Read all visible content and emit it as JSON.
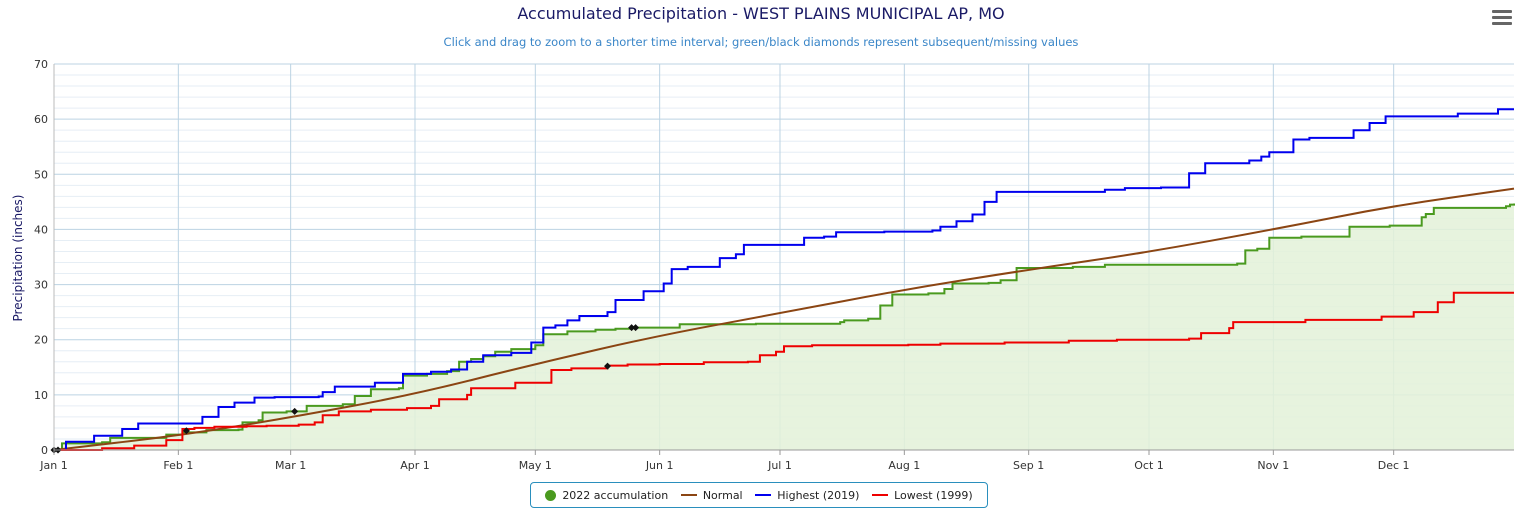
{
  "colors": {
    "accumulation": "#4a9a1f",
    "accumulation_fill": "#e3f1d8",
    "normal": "#8b4513",
    "highest": "#0000ee",
    "lowest": "#ee0000",
    "grid": "#bcd3e3",
    "axis_text": "#333333"
  },
  "menu_icon": "hamburger-menu-icon",
  "chart_data": {
    "type": "line",
    "title": "Accumulated Precipitation - WEST PLAINS MUNICIPAL AP, MO",
    "subtitle": "Click and drag to zoom to a shorter time interval; green/black diamonds represent subsequent/missing values",
    "ylabel": "Precipitation (inches)",
    "xlabel": "",
    "ylim": [
      0,
      70
    ],
    "xlim": [
      0,
      364
    ],
    "yticks": [
      "0",
      "10",
      "20",
      "30",
      "40",
      "50",
      "60",
      "70"
    ],
    "xticks": [
      {
        "label": "Jan 1",
        "day": 0
      },
      {
        "label": "Feb 1",
        "day": 31
      },
      {
        "label": "Mar 1",
        "day": 59
      },
      {
        "label": "Apr 1",
        "day": 90
      },
      {
        "label": "May 1",
        "day": 120
      },
      {
        "label": "Jun 1",
        "day": 151
      },
      {
        "label": "Jul 1",
        "day": 181
      },
      {
        "label": "Aug 1",
        "day": 212
      },
      {
        "label": "Sep 1",
        "day": 243
      },
      {
        "label": "Oct 1",
        "day": 273
      },
      {
        "label": "Nov 1",
        "day": 304
      },
      {
        "label": "Dec 1",
        "day": 334
      }
    ],
    "series": [
      {
        "key": "accumulation",
        "name": "2022 accumulation",
        "style": "step-area",
        "points": [
          [
            0,
            0
          ],
          [
            2,
            1.2
          ],
          [
            12,
            1.4
          ],
          [
            14,
            2.2
          ],
          [
            28,
            2.8
          ],
          [
            32,
            3.2
          ],
          [
            38,
            3.6
          ],
          [
            46,
            3.7
          ],
          [
            47,
            5.0
          ],
          [
            51,
            5.4
          ],
          [
            52,
            6.8
          ],
          [
            58,
            7.0
          ],
          [
            63,
            8.0
          ],
          [
            72,
            8.3
          ],
          [
            75,
            9.8
          ],
          [
            79,
            11.0
          ],
          [
            86,
            11.2
          ],
          [
            87,
            13.5
          ],
          [
            93,
            13.8
          ],
          [
            98,
            14.3
          ],
          [
            101,
            16.0
          ],
          [
            104,
            16.5
          ],
          [
            107,
            17.0
          ],
          [
            110,
            17.8
          ],
          [
            114,
            18.3
          ],
          [
            120,
            19.0
          ],
          [
            122,
            21.0
          ],
          [
            128,
            21.5
          ],
          [
            135,
            21.8
          ],
          [
            140,
            22.0
          ],
          [
            144,
            22.2
          ],
          [
            156,
            22.8
          ],
          [
            175,
            22.9
          ],
          [
            196,
            23.2
          ],
          [
            197,
            23.5
          ],
          [
            203,
            23.8
          ],
          [
            206,
            26.2
          ],
          [
            209,
            28.2
          ],
          [
            218,
            28.4
          ],
          [
            222,
            29.2
          ],
          [
            224,
            30.2
          ],
          [
            233,
            30.3
          ],
          [
            236,
            30.8
          ],
          [
            240,
            33.0
          ],
          [
            254,
            33.2
          ],
          [
            262,
            33.6
          ],
          [
            295,
            33.8
          ],
          [
            297,
            36.2
          ],
          [
            300,
            36.5
          ],
          [
            303,
            38.5
          ],
          [
            311,
            38.7
          ],
          [
            323,
            40.5
          ],
          [
            333,
            40.7
          ],
          [
            341,
            42.2
          ],
          [
            342,
            42.8
          ],
          [
            344,
            43.9
          ],
          [
            362,
            44.2
          ],
          [
            363,
            44.5
          ],
          [
            364,
            44.7
          ]
        ]
      },
      {
        "key": "normal",
        "name": "Normal",
        "style": "smooth",
        "points": [
          [
            0,
            0
          ],
          [
            31,
            2.6
          ],
          [
            59,
            5.9
          ],
          [
            90,
            10.1
          ],
          [
            120,
            15.6
          ],
          [
            151,
            20.8
          ],
          [
            181,
            24.8
          ],
          [
            212,
            29.1
          ],
          [
            243,
            32.7
          ],
          [
            273,
            35.9
          ],
          [
            304,
            40.0
          ],
          [
            334,
            44.3
          ],
          [
            364,
            47.4
          ]
        ]
      },
      {
        "key": "highest",
        "name": "Highest (2019)",
        "style": "step",
        "points": [
          [
            0,
            0
          ],
          [
            3,
            1.5
          ],
          [
            10,
            2.6
          ],
          [
            17,
            3.8
          ],
          [
            21,
            4.8
          ],
          [
            37,
            6.0
          ],
          [
            41,
            7.8
          ],
          [
            45,
            8.6
          ],
          [
            50,
            9.5
          ],
          [
            55,
            9.6
          ],
          [
            66,
            9.7
          ],
          [
            67,
            10.5
          ],
          [
            70,
            11.5
          ],
          [
            80,
            12.2
          ],
          [
            87,
            13.8
          ],
          [
            94,
            14.2
          ],
          [
            99,
            14.6
          ],
          [
            103,
            16.0
          ],
          [
            107,
            17.2
          ],
          [
            114,
            17.6
          ],
          [
            119,
            19.5
          ],
          [
            122,
            22.2
          ],
          [
            125,
            22.6
          ],
          [
            128,
            23.5
          ],
          [
            131,
            24.3
          ],
          [
            138,
            25.0
          ],
          [
            140,
            27.2
          ],
          [
            147,
            28.8
          ],
          [
            152,
            30.2
          ],
          [
            154,
            32.8
          ],
          [
            158,
            33.2
          ],
          [
            166,
            34.8
          ],
          [
            170,
            35.5
          ],
          [
            172,
            37.2
          ],
          [
            187,
            38.5
          ],
          [
            192,
            38.7
          ],
          [
            195,
            39.5
          ],
          [
            207,
            39.6
          ],
          [
            219,
            39.8
          ],
          [
            221,
            40.5
          ],
          [
            225,
            41.5
          ],
          [
            229,
            42.7
          ],
          [
            232,
            45.0
          ],
          [
            235,
            46.8
          ],
          [
            262,
            47.2
          ],
          [
            267,
            47.5
          ],
          [
            276,
            47.6
          ],
          [
            283,
            50.2
          ],
          [
            287,
            52.0
          ],
          [
            298,
            52.5
          ],
          [
            301,
            53.2
          ],
          [
            303,
            54.0
          ],
          [
            309,
            56.3
          ],
          [
            313,
            56.6
          ],
          [
            324,
            58.0
          ],
          [
            328,
            59.3
          ],
          [
            332,
            60.5
          ],
          [
            350,
            61.0
          ],
          [
            360,
            61.8
          ],
          [
            364,
            61.8
          ]
        ]
      },
      {
        "key": "lowest",
        "name": "Lowest (1999)",
        "style": "step",
        "points": [
          [
            0,
            0
          ],
          [
            12,
            0.3
          ],
          [
            20,
            0.8
          ],
          [
            28,
            1.8
          ],
          [
            32,
            3.8
          ],
          [
            35,
            4.0
          ],
          [
            40,
            4.2
          ],
          [
            48,
            4.3
          ],
          [
            53,
            4.4
          ],
          [
            61,
            4.6
          ],
          [
            65,
            5.0
          ],
          [
            67,
            6.3
          ],
          [
            71,
            7.0
          ],
          [
            79,
            7.3
          ],
          [
            88,
            7.6
          ],
          [
            94,
            8.0
          ],
          [
            96,
            9.2
          ],
          [
            103,
            10.0
          ],
          [
            104,
            11.2
          ],
          [
            115,
            12.2
          ],
          [
            124,
            14.5
          ],
          [
            129,
            14.8
          ],
          [
            138,
            15.3
          ],
          [
            143,
            15.5
          ],
          [
            151,
            15.6
          ],
          [
            162,
            15.9
          ],
          [
            173,
            16.0
          ],
          [
            176,
            17.2
          ],
          [
            180,
            17.8
          ],
          [
            182,
            18.8
          ],
          [
            189,
            19.0
          ],
          [
            213,
            19.1
          ],
          [
            221,
            19.3
          ],
          [
            237,
            19.5
          ],
          [
            253,
            19.8
          ],
          [
            265,
            20.0
          ],
          [
            283,
            20.2
          ],
          [
            286,
            21.2
          ],
          [
            293,
            22.1
          ],
          [
            294,
            23.2
          ],
          [
            312,
            23.6
          ],
          [
            331,
            24.2
          ],
          [
            339,
            25.0
          ],
          [
            345,
            26.8
          ],
          [
            349,
            28.5
          ],
          [
            364,
            28.5
          ]
        ]
      }
    ],
    "markers": [
      {
        "day": 0,
        "value": 0
      },
      {
        "day": 1,
        "value": 0
      },
      {
        "day": 33,
        "value": 3.5
      },
      {
        "day": 60,
        "value": 7.0
      },
      {
        "day": 138,
        "value": 15.2
      },
      {
        "day": 144,
        "value": 22.2
      },
      {
        "day": 145,
        "value": 22.2
      }
    ],
    "grid": true,
    "legend": "bottom-center"
  }
}
